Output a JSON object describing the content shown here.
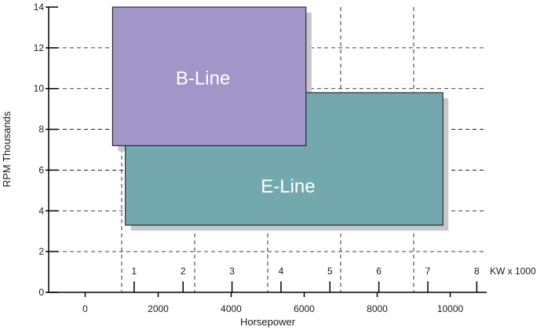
{
  "chart_data": {
    "type": "bar",
    "title": "",
    "xlabel": "Horsepower",
    "ylabel": "RPM Thousands",
    "secondary_xlabel": "KW x 1000",
    "xlim": [
      -1000,
      11000
    ],
    "ylim": [
      0,
      14
    ],
    "x_ticks": [
      0,
      2000,
      4000,
      6000,
      8000,
      10000
    ],
    "x_tick_labels": [
      "0",
      "2000",
      "4000",
      "6000",
      "8000",
      "10000"
    ],
    "y_ticks": [
      0,
      2,
      4,
      6,
      8,
      10,
      12,
      14
    ],
    "y_tick_labels": [
      "0",
      "2",
      "4",
      "6",
      "8",
      "10",
      "12",
      "14"
    ],
    "kw_ticks": [
      1,
      2,
      3,
      4,
      5,
      6,
      7,
      8
    ],
    "kw_tick_labels": [
      "1",
      "2",
      "3",
      "4",
      "5",
      "6",
      "7",
      "8"
    ],
    "kw_per_hp": 0.7457,
    "grid": {
      "vertical_dashed_at_hp": [
        1000,
        3000,
        5000,
        7000,
        9000
      ],
      "horizontal_dashed": true
    },
    "regions": [
      {
        "name": "E-Line",
        "hp_range": [
          1100,
          9800
        ],
        "rpm_range": [
          3.3,
          9.8
        ],
        "color": "#74a8af"
      },
      {
        "name": "B-Line",
        "hp_range": [
          750,
          6050
        ],
        "rpm_range": [
          7.2,
          14
        ],
        "color": "#a096c8"
      }
    ]
  }
}
